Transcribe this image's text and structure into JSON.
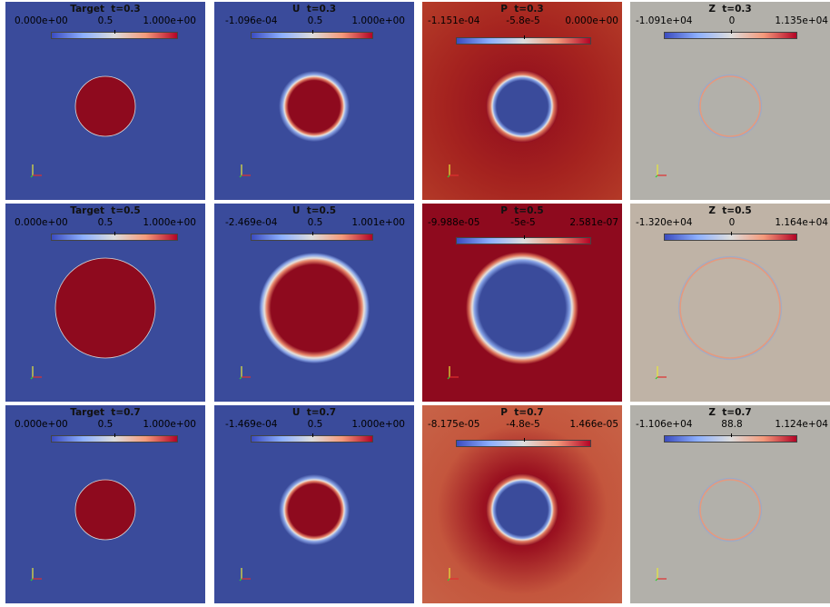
{
  "colors": {
    "blue": "#3a4b9b",
    "red": "#8e0a1e",
    "gray": "#b2b0aa",
    "beige": "#bfb3a6"
  },
  "rows": [
    {
      "panels": [
        {
          "id": "target",
          "var": "Target",
          "time": "t=0.3",
          "min": "0.000e+00",
          "mid": "0.5",
          "max": "1.000e+00",
          "bg": "#3a4b9b",
          "circle": "#8e0a1e",
          "style": "sharp",
          "radius_frac": 0.3
        },
        {
          "id": "u",
          "var": "U",
          "time": "t=0.3",
          "min": "-1.096e-04",
          "mid": "0.5",
          "max": "1.000e+00",
          "bg": "#3a4b9b",
          "circle": "#8e0a1e",
          "style": "soft",
          "radius_frac": 0.3
        },
        {
          "id": "p",
          "var": "P",
          "time": "t=0.3",
          "min": "-1.151e-04",
          "mid": "-5.8e-5",
          "max": "0.000e+00",
          "bg": "#a01a1f",
          "circle": "#3a4b9b",
          "style": "soft-inverted",
          "radius_frac": 0.3
        },
        {
          "id": "z",
          "var": "Z",
          "time": "t=0.3",
          "min": "-1.091e+04",
          "mid": "0",
          "max": "1.135e+04",
          "bg": "#b2b0aa",
          "circle": "none",
          "style": "ring",
          "radius_frac": 0.3
        }
      ]
    },
    {
      "panels": [
        {
          "id": "target",
          "var": "Target",
          "time": "t=0.5",
          "min": "0.000e+00",
          "mid": "0.5",
          "max": "1.000e+00",
          "bg": "#3a4b9b",
          "circle": "#8e0a1e",
          "style": "sharp",
          "radius_frac": 0.5
        },
        {
          "id": "u",
          "var": "U",
          "time": "t=0.5",
          "min": "-2.469e-04",
          "mid": "0.5",
          "max": "1.001e+00",
          "bg": "#3a4b9b",
          "circle": "#8e0a1e",
          "style": "soft",
          "radius_frac": 0.5
        },
        {
          "id": "p",
          "var": "P",
          "time": "t=0.5",
          "min": "-9.988e-05",
          "mid": "-5e-5",
          "max": "2.581e-07",
          "bg": "#8e0a1e",
          "circle": "#3a4b9b",
          "style": "soft-inverted",
          "radius_frac": 0.5
        },
        {
          "id": "z",
          "var": "Z",
          "time": "t=0.5",
          "min": "-1.320e+04",
          "mid": "0",
          "max": "1.164e+04",
          "bg": "#bfb3a6",
          "circle": "none",
          "style": "ring",
          "radius_frac": 0.5
        }
      ]
    },
    {
      "panels": [
        {
          "id": "target",
          "var": "Target",
          "time": "t=0.7",
          "min": "0.000e+00",
          "mid": "0.5",
          "max": "1.000e+00",
          "bg": "#3a4b9b",
          "circle": "#8e0a1e",
          "style": "sharp",
          "radius_frac": 0.3
        },
        {
          "id": "u",
          "var": "U",
          "time": "t=0.7",
          "min": "-1.469e-04",
          "mid": "0.5",
          "max": "1.000e+00",
          "bg": "#3a4b9b",
          "circle": "#8e0a1e",
          "style": "soft",
          "radius_frac": 0.3
        },
        {
          "id": "p",
          "var": "P",
          "time": "t=0.7",
          "min": "-8.175e-05",
          "mid": "-4.8e-5",
          "max": "1.466e-05",
          "bg": "#c4563d",
          "circle": "#3a4b9b",
          "style": "halo",
          "radius_frac": 0.3
        },
        {
          "id": "z",
          "var": "Z",
          "time": "t=0.7",
          "min": "-1.106e+04",
          "mid": "88.8",
          "max": "1.124e+04",
          "bg": "#b2b0aa",
          "circle": "none",
          "style": "ring",
          "radius_frac": 0.3
        }
      ]
    }
  ]
}
